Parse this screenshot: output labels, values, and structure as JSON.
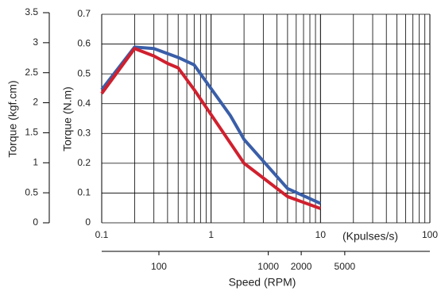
{
  "chart_data": {
    "type": "line",
    "xscale": "log",
    "xlim": [
      0.1,
      100
    ],
    "xticks": [
      0.1,
      1,
      10,
      100
    ],
    "xlabel": "(Kpulses/s)",
    "ylabel": "Torque (N.m)",
    "ylim": [
      0,
      0.7
    ],
    "yticks": [
      0,
      0.1,
      0.2,
      0.3,
      0.4,
      0.5,
      0.6,
      0.7
    ],
    "y2label": "Torque (kgf.cm)",
    "y2lim": [
      0,
      3.5
    ],
    "y2ticks": [
      0,
      0.5,
      1,
      1.5,
      2,
      2.5,
      3,
      3.5
    ],
    "x2label": "Speed (RPM)",
    "x2lim": [
      30,
      30000
    ],
    "x2ticks": [
      100,
      1000,
      2000,
      5000
    ],
    "grid": true,
    "series": [
      {
        "color": "#3a5ea8",
        "x": [
          0.1,
          0.2,
          0.3,
          0.5,
          0.7,
          1.5,
          2,
          5,
          10
        ],
        "values": [
          0.447,
          0.59,
          0.585,
          0.555,
          0.53,
          0.36,
          0.28,
          0.115,
          0.065
        ]
      },
      {
        "color": "#d0202e",
        "x": [
          0.1,
          0.2,
          0.3,
          0.4,
          0.5,
          0.7,
          2,
          5,
          10
        ],
        "values": [
          0.434,
          0.585,
          0.56,
          0.535,
          0.52,
          0.447,
          0.2,
          0.088,
          0.048
        ]
      }
    ]
  }
}
